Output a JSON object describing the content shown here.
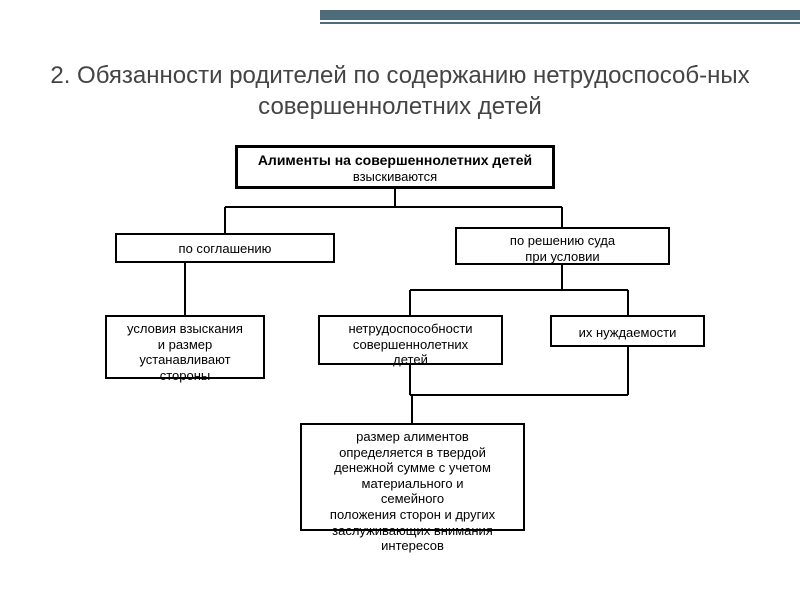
{
  "title": "2. Обязанности родителей по содержанию нетрудоспособ-ных совершеннолетних детей",
  "diagram": {
    "type": "flowchart",
    "background_color": "#ffffff",
    "border_color": "#000000",
    "line_color": "#000000",
    "text_color": "#000000",
    "font_family": "Arial",
    "header": {
      "bold": "Алименты на совершеннолетних детей",
      "plain": "взыскиваются"
    },
    "nodes": {
      "agreement": "по соглашению",
      "court": "по решению суда\nпри условии",
      "conditions": "условия взыскания\nи размер\nустанавливают\nстороны",
      "incapacity": "нетрудоспособности\nсовершеннолетних\nдетей",
      "need": "их нуждаемости",
      "amount": "размер алиментов\nопределяется в твердой\nденежной сумме с учетом\nматериального и\nсемейного\nположения сторон и других\nзаслуживающих внимания\nинтересов"
    }
  },
  "accent_color": "#4f6c7a"
}
